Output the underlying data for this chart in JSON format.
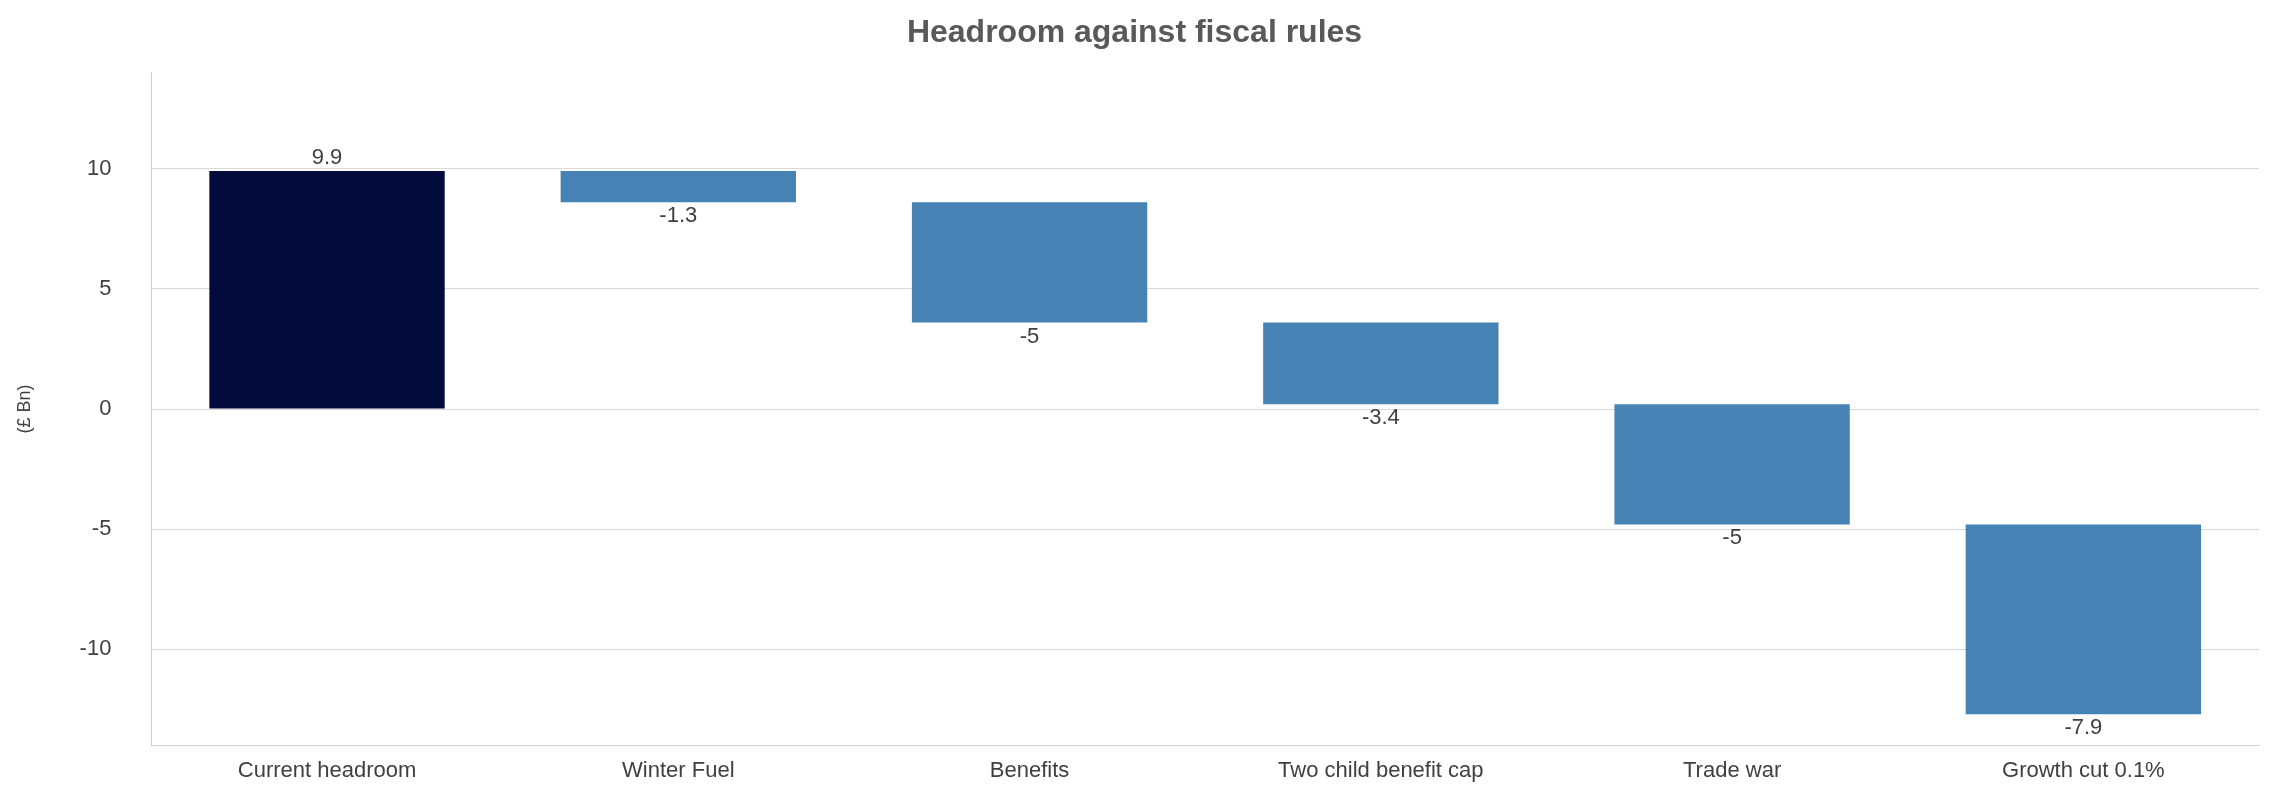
{
  "chart_data": {
    "type": "bar",
    "title": "Headroom against fiscal rules",
    "ylabel": "(£ Bn)",
    "categories": [
      "Current headroom",
      "Winter Fuel",
      "Benefits",
      "Two child benefit cap",
      "Trade war",
      "Growth cut 0.1%"
    ],
    "values": [
      9.9,
      -1.3,
      -5,
      -3.4,
      -5,
      -7.9
    ],
    "base": [
      0,
      9.9,
      8.6,
      3.6,
      0.2,
      -4.8
    ],
    "colors": [
      "#020b3a",
      "#4682b4",
      "#4682b4",
      "#4682b4",
      "#4682b4",
      "#4682b4"
    ],
    "ylim": [
      -14,
      14
    ],
    "yticks": [
      -10,
      -5,
      0,
      5,
      10
    ],
    "grid": "y",
    "legend": false,
    "data_labels": true
  }
}
